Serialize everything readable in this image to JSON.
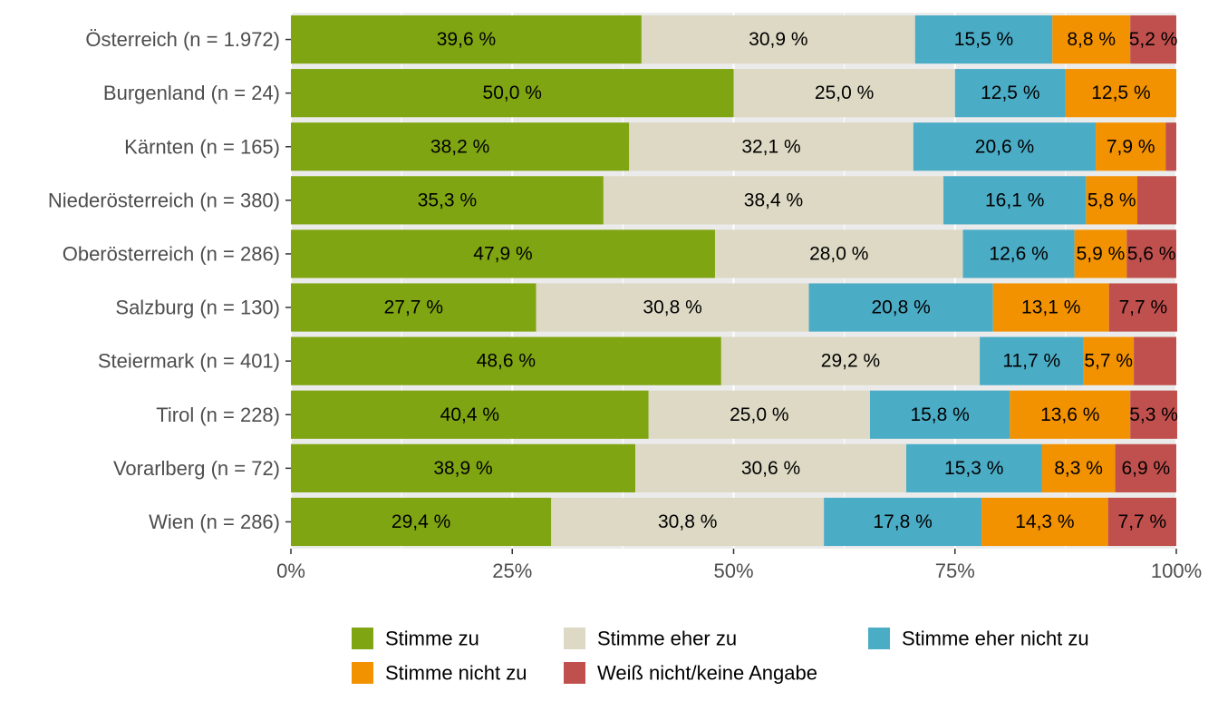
{
  "chart_data": {
    "type": "bar",
    "orientation": "horizontal",
    "stacked": true,
    "normalized": true,
    "title": "",
    "xlabel": "",
    "ylabel": "",
    "xlim": [
      0,
      100
    ],
    "x_ticks": [
      0,
      25,
      50,
      75,
      100
    ],
    "x_tick_labels": [
      "0%",
      "25%",
      "50%",
      "75%",
      "100%"
    ],
    "grid": true,
    "legend_position": "bottom",
    "categories": [
      "Österreich (n = 1.972)",
      "Burgenland (n = 24)",
      "Kärnten (n = 165)",
      "Niederösterreich (n = 380)",
      "Oberösterreich (n = 286)",
      "Salzburg (n = 130)",
      "Steiermark (n = 401)",
      "Tirol (n = 228)",
      "Vorarlberg (n = 72)",
      "Wien (n = 286)"
    ],
    "series": [
      {
        "name": "Stimme zu",
        "color": "#7FA512",
        "values": [
          39.6,
          50.0,
          38.2,
          35.3,
          47.9,
          27.7,
          48.6,
          40.4,
          38.9,
          29.4
        ],
        "labels": [
          "39,6 %",
          "50,0 %",
          "38,2 %",
          "35,3 %",
          "47,9 %",
          "27,7 %",
          "48,6 %",
          "40,4 %",
          "38,9 %",
          "29,4 %"
        ]
      },
      {
        "name": "Stimme eher zu",
        "color": "#DDD9C4",
        "values": [
          30.9,
          25.0,
          32.1,
          38.4,
          28.0,
          30.8,
          29.2,
          25.0,
          30.6,
          30.8
        ],
        "labels": [
          "30,9 %",
          "25,0 %",
          "32,1 %",
          "38,4 %",
          "28,0 %",
          "30,8 %",
          "29,2 %",
          "25,0 %",
          "30,6 %",
          "30,8 %"
        ]
      },
      {
        "name": "Stimme eher nicht zu",
        "color": "#4BACC6",
        "values": [
          15.5,
          12.5,
          20.6,
          16.1,
          12.6,
          20.8,
          11.7,
          15.8,
          15.3,
          17.8
        ],
        "labels": [
          "15,5 %",
          "12,5 %",
          "20,6 %",
          "16,1 %",
          "12,6 %",
          "20,8 %",
          "11,7 %",
          "15,8 %",
          "15,3 %",
          "17,8 %"
        ]
      },
      {
        "name": "Stimme nicht zu",
        "color": "#F39200",
        "values": [
          8.8,
          12.5,
          7.9,
          5.8,
          5.9,
          13.1,
          5.7,
          13.6,
          8.3,
          14.3
        ],
        "labels": [
          "8,8 %",
          "12,5 %",
          "7,9 %",
          "5,8 %",
          "5,9 %",
          "13,1 %",
          "5,7 %",
          "13,6 %",
          "8,3 %",
          "14,3 %"
        ]
      },
      {
        "name": "Weiß nicht/keine Angabe",
        "color": "#C0504D",
        "values": [
          5.2,
          0.0,
          1.2,
          4.4,
          5.6,
          7.7,
          4.8,
          5.3,
          6.9,
          7.7
        ],
        "labels": [
          "5,2 %",
          "",
          "",
          "",
          "5,6 %",
          "7,7 %",
          "",
          "5,3 %",
          "6,9 %",
          "7,7 %"
        ]
      }
    ]
  }
}
